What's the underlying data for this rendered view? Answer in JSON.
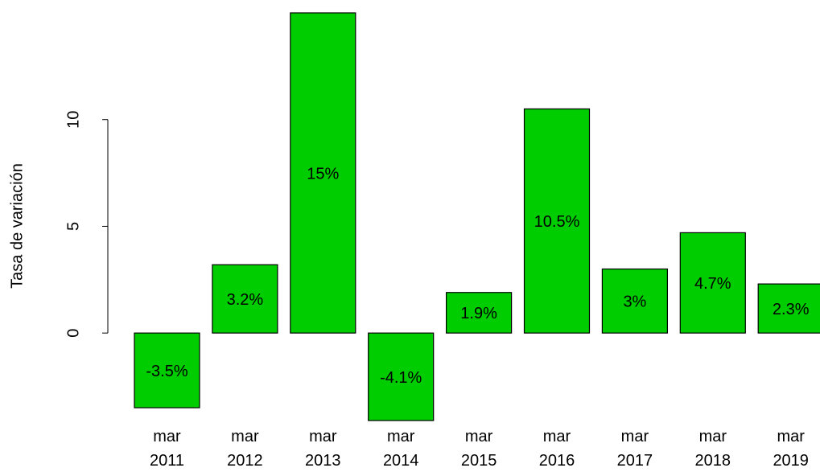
{
  "chart_data": {
    "type": "bar",
    "y_label": "Tasa de variación",
    "categories": [
      "mar\n2011",
      "mar\n2012",
      "mar\n2013",
      "mar\n2014",
      "mar\n2015",
      "mar\n2016",
      "mar\n2017",
      "mar\n2018",
      "mar\n2019"
    ],
    "values": [
      -3.5,
      3.2,
      15,
      -4.1,
      1.9,
      10.5,
      3,
      4.7,
      2.3
    ],
    "value_labels": [
      "-3.5%",
      "3.2%",
      "15%",
      "-4.1%",
      "1.9%",
      "10.5%",
      "3%",
      "4.7%",
      "2.3%"
    ],
    "color": "#00cd00",
    "ylim": [
      -4.1,
      15
    ],
    "yticks": [
      0,
      5,
      10
    ],
    "grid": false
  }
}
